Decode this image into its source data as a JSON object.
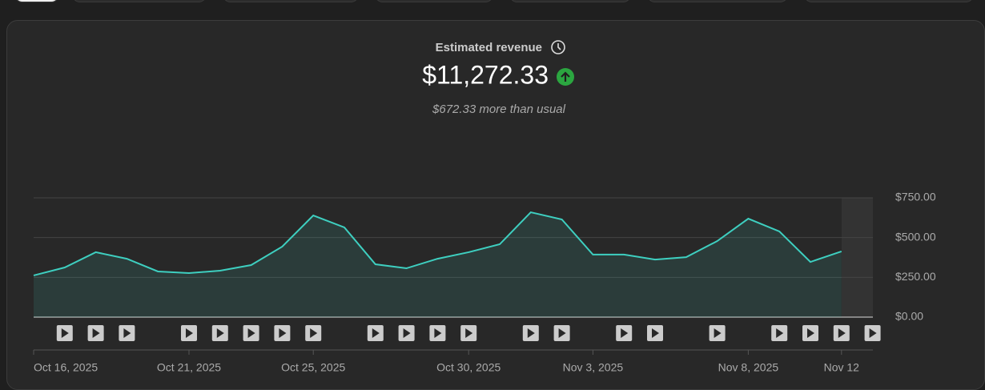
{
  "header": {
    "title": "Estimated revenue",
    "total": "$11,272.33",
    "comparison": "$672.33 more than usual"
  },
  "chart_data": {
    "type": "line",
    "categories": [
      "Oct 16, 2025",
      null,
      null,
      null,
      null,
      "Oct 21, 2025",
      null,
      null,
      null,
      "Oct 25, 2025",
      null,
      null,
      null,
      null,
      "Oct 30, 2025",
      null,
      null,
      null,
      "Nov 3, 2025",
      null,
      null,
      null,
      null,
      "Nov 8, 2025",
      null,
      null,
      "Nov 12"
    ],
    "series": [
      {
        "color": "#3ecfc0",
        "values": [
          262,
          312,
          408,
          367,
          287,
          277,
          292,
          327,
          443,
          639,
          564,
          332,
          307,
          367,
          408,
          458,
          659,
          614,
          393,
          393,
          362,
          377,
          478,
          619,
          539,
          347,
          413
        ]
      }
    ],
    "ylim": [
      0,
      750
    ],
    "yticks": [
      {
        "value": 0,
        "label": "$0.00"
      },
      {
        "value": 250,
        "label": "$250.00"
      },
      {
        "value": 500,
        "label": "$500.00"
      },
      {
        "value": 750,
        "label": "$750.00"
      }
    ],
    "grid": true
  }
}
